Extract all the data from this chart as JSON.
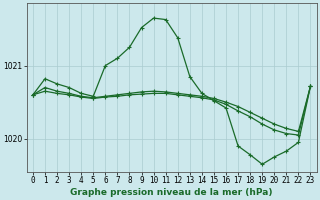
{
  "title": "Graphe pression niveau de la mer (hPa)",
  "bg_color": "#cce8ec",
  "grid_color": "#aaccd0",
  "line_color": "#1a6b2a",
  "xlim": [
    -0.5,
    23.5
  ],
  "ylim": [
    1019.55,
    1021.85
  ],
  "yticks": [
    1020,
    1021
  ],
  "xticks": [
    0,
    1,
    2,
    3,
    4,
    5,
    6,
    7,
    8,
    9,
    10,
    11,
    12,
    13,
    14,
    15,
    16,
    17,
    18,
    19,
    20,
    21,
    22,
    23
  ],
  "series1_x": [
    0,
    1,
    2,
    3,
    4,
    5,
    6,
    7,
    8,
    9,
    10,
    11,
    12,
    13,
    14,
    15,
    16,
    17,
    18,
    19,
    20,
    21,
    22,
    23
  ],
  "series1_y": [
    1020.6,
    1020.82,
    1020.75,
    1020.7,
    1020.62,
    1020.58,
    1021.0,
    1021.1,
    1021.25,
    1021.52,
    1021.65,
    1021.63,
    1021.38,
    1020.85,
    1020.62,
    1020.52,
    1020.42,
    1019.9,
    1019.78,
    1019.65,
    1019.75,
    1019.83,
    1019.95,
    1020.72
  ],
  "series2_x": [
    0,
    1,
    2,
    3,
    4,
    5,
    6,
    7,
    8,
    9,
    10,
    11,
    12,
    13,
    14,
    15,
    16,
    17,
    18,
    19,
    20,
    21,
    22,
    23
  ],
  "series2_y": [
    1020.6,
    1020.7,
    1020.65,
    1020.62,
    1020.58,
    1020.56,
    1020.58,
    1020.6,
    1020.62,
    1020.64,
    1020.65,
    1020.64,
    1020.62,
    1020.6,
    1020.58,
    1020.55,
    1020.5,
    1020.44,
    1020.36,
    1020.28,
    1020.2,
    1020.14,
    1020.1,
    1020.72
  ],
  "series3_x": [
    0,
    1,
    2,
    3,
    4,
    5,
    6,
    7,
    8,
    9,
    10,
    11,
    12,
    13,
    14,
    15,
    16,
    17,
    18,
    19,
    20,
    21,
    22,
    23
  ],
  "series3_y": [
    1020.6,
    1020.65,
    1020.62,
    1020.6,
    1020.57,
    1020.55,
    1020.57,
    1020.58,
    1020.6,
    1020.61,
    1020.62,
    1020.62,
    1020.6,
    1020.58,
    1020.56,
    1020.53,
    1020.47,
    1020.38,
    1020.3,
    1020.2,
    1020.12,
    1020.07,
    1020.05,
    1020.72
  ],
  "marker": "+",
  "marker_size": 3,
  "line_width": 0.9,
  "tick_fontsize": 5.5,
  "title_fontsize": 6.5
}
